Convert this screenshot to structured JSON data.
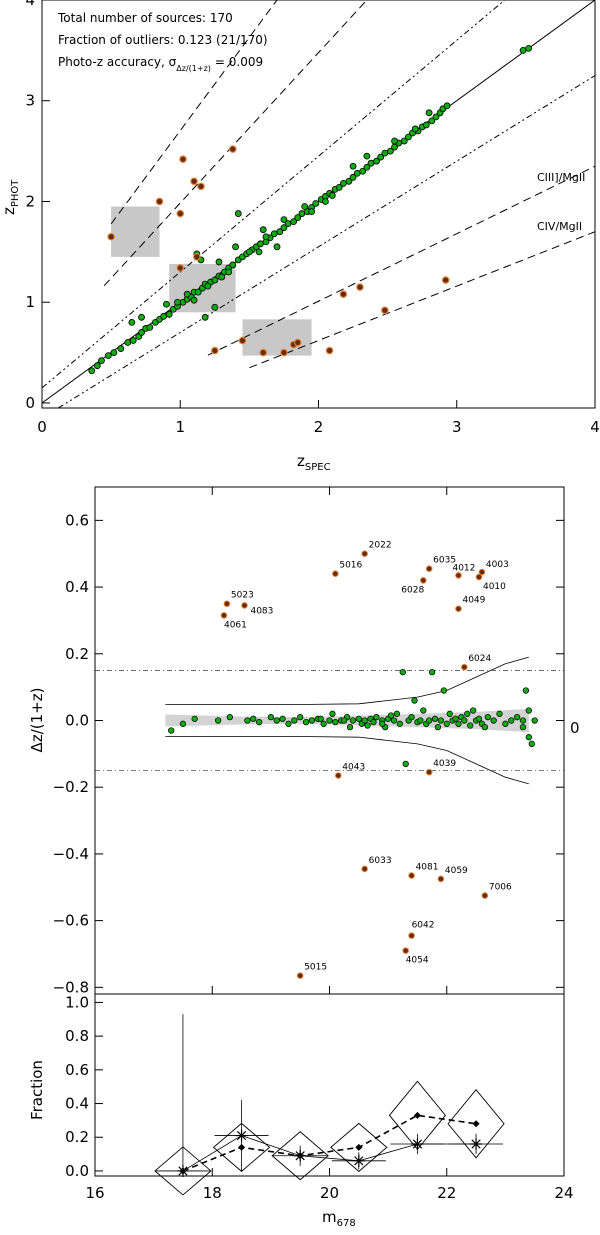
{
  "chart_data": [
    {
      "type": "scatter",
      "panel": "top",
      "xlabel": "z",
      "xlabel_sub": "SPEC",
      "ylabel": "z",
      "ylabel_sub": "PHOT",
      "xlim": [
        0,
        4
      ],
      "ylim": [
        -0.05,
        4
      ],
      "xticks": [
        "0",
        "1",
        "2",
        "3",
        "4"
      ],
      "yticks": [
        "0",
        "1",
        "2",
        "3",
        "4"
      ],
      "annotations": {
        "total": "Total number of sources: 170",
        "outliers": "Fraction of outliers: 0.123 (21/170)",
        "accuracy_prefix": "Photo-z accuracy, σ",
        "accuracy_sub": "Δz/(1+z)",
        "accuracy_value": "= 0.009",
        "ciii_label": "CIII]/MgII",
        "civ_label": "CIV/MgII"
      },
      "lines": {
        "one_to_one": "solid",
        "scatter_limit_dz": 0.15,
        "ciii_mgii_factor": 0.67,
        "civ_mgii_factor": 0.54
      },
      "shaded_boxes": [
        {
          "x0": 0.5,
          "x1": 0.85,
          "y0": 1.45,
          "y1": 1.95
        },
        {
          "x0": 0.92,
          "x1": 1.4,
          "y0": 0.9,
          "y1": 1.38
        },
        {
          "x0": 1.45,
          "x1": 1.95,
          "y0": 0.47,
          "y1": 0.83
        }
      ],
      "inliers": [
        [
          0.36,
          0.32
        ],
        [
          0.4,
          0.37
        ],
        [
          0.43,
          0.42
        ],
        [
          0.48,
          0.47
        ],
        [
          0.52,
          0.5
        ],
        [
          0.57,
          0.54
        ],
        [
          0.62,
          0.6
        ],
        [
          0.66,
          0.62
        ],
        [
          0.7,
          0.66
        ],
        [
          0.72,
          0.7
        ],
        [
          0.75,
          0.74
        ],
        [
          0.78,
          0.75
        ],
        [
          0.82,
          0.8
        ],
        [
          0.85,
          0.83
        ],
        [
          0.88,
          0.86
        ],
        [
          0.92,
          0.88
        ],
        [
          0.95,
          0.93
        ],
        [
          0.98,
          0.96
        ],
        [
          1.02,
          1.0
        ],
        [
          1.05,
          1.03
        ],
        [
          1.08,
          1.05
        ],
        [
          1.1,
          1.1
        ],
        [
          1.13,
          1.1
        ],
        [
          1.16,
          1.14
        ],
        [
          1.18,
          1.18
        ],
        [
          1.22,
          1.2
        ],
        [
          1.25,
          1.22
        ],
        [
          1.28,
          1.26
        ],
        [
          1.32,
          1.3
        ],
        [
          1.35,
          1.34
        ],
        [
          1.38,
          1.37
        ],
        [
          1.42,
          1.42
        ],
        [
          1.45,
          1.45
        ],
        [
          1.48,
          1.48
        ],
        [
          1.52,
          1.52
        ],
        [
          1.55,
          1.55
        ],
        [
          1.58,
          1.58
        ],
        [
          1.62,
          1.6
        ],
        [
          1.65,
          1.64
        ],
        [
          1.68,
          1.68
        ],
        [
          1.72,
          1.7
        ],
        [
          1.75,
          1.74
        ],
        [
          1.78,
          1.78
        ],
        [
          1.82,
          1.8
        ],
        [
          1.85,
          1.84
        ],
        [
          1.88,
          1.88
        ],
        [
          1.92,
          1.9
        ],
        [
          1.95,
          1.94
        ],
        [
          1.98,
          1.98
        ],
        [
          2.02,
          2.02
        ],
        [
          2.05,
          2.05
        ],
        [
          2.08,
          2.08
        ],
        [
          2.12,
          2.12
        ],
        [
          2.15,
          2.14
        ],
        [
          2.18,
          2.18
        ],
        [
          2.22,
          2.2
        ],
        [
          2.25,
          2.24
        ],
        [
          2.28,
          2.28
        ],
        [
          2.32,
          2.3
        ],
        [
          2.35,
          2.34
        ],
        [
          2.38,
          2.38
        ],
        [
          2.42,
          2.4
        ],
        [
          2.45,
          2.44
        ],
        [
          2.48,
          2.48
        ],
        [
          2.52,
          2.5
        ],
        [
          2.55,
          2.54
        ],
        [
          2.58,
          2.58
        ],
        [
          2.62,
          2.6
        ],
        [
          2.65,
          2.64
        ],
        [
          2.68,
          2.68
        ],
        [
          2.72,
          2.7
        ],
        [
          2.75,
          2.74
        ],
        [
          2.78,
          2.76
        ],
        [
          2.82,
          2.8
        ],
        [
          2.85,
          2.84
        ],
        [
          2.88,
          2.88
        ],
        [
          2.9,
          2.92
        ],
        [
          2.93,
          2.95
        ],
        [
          3.48,
          3.5
        ],
        [
          3.52,
          3.52
        ],
        [
          0.65,
          0.8
        ],
        [
          0.72,
          0.85
        ],
        [
          0.9,
          0.98
        ],
        [
          1.12,
          1.48
        ],
        [
          1.15,
          1.42
        ],
        [
          1.42,
          1.88
        ],
        [
          1.28,
          1.4
        ],
        [
          1.35,
          1.3
        ],
        [
          1.25,
          0.95
        ],
        [
          1.18,
          0.85
        ],
        [
          1.4,
          1.55
        ],
        [
          1.6,
          1.72
        ],
        [
          1.7,
          1.55
        ],
        [
          1.75,
          1.82
        ],
        [
          1.9,
          1.95
        ],
        [
          2.05,
          2.0
        ],
        [
          2.25,
          2.35
        ],
        [
          2.35,
          2.45
        ],
        [
          2.55,
          2.6
        ],
        [
          2.7,
          2.72
        ],
        [
          2.8,
          2.88
        ],
        [
          1.05,
          1.08
        ],
        [
          0.98,
          1.0
        ],
        [
          1.2,
          1.16
        ],
        [
          1.3,
          1.25
        ],
        [
          1.1,
          1.02
        ],
        [
          1.5,
          1.5
        ],
        [
          1.57,
          1.5
        ],
        [
          1.62,
          1.65
        ],
        [
          1.95,
          1.9
        ],
        [
          2.1,
          2.06
        ]
      ],
      "outlier_points": [
        [
          0.5,
          1.65
        ],
        [
          0.85,
          2.0
        ],
        [
          1.0,
          1.88
        ],
        [
          1.02,
          2.42
        ],
        [
          1.1,
          2.2
        ],
        [
          1.15,
          2.15
        ],
        [
          1.38,
          2.52
        ],
        [
          1.0,
          1.34
        ],
        [
          1.12,
          1.45
        ],
        [
          1.25,
          0.52
        ],
        [
          1.45,
          0.62
        ],
        [
          1.6,
          0.5
        ],
        [
          1.75,
          0.5
        ],
        [
          1.82,
          0.58
        ],
        [
          1.85,
          0.6
        ],
        [
          2.08,
          0.52
        ],
        [
          2.18,
          1.08
        ],
        [
          2.3,
          1.15
        ],
        [
          2.48,
          0.92
        ],
        [
          2.92,
          1.22
        ]
      ]
    },
    {
      "type": "scatter",
      "panel": "middle",
      "ylabel": "Δz/(1+z)",
      "xlim": [
        16,
        24
      ],
      "ylim": [
        -0.82,
        0.7
      ],
      "yticks": [
        "−0.8",
        "−0.6",
        "−0.4",
        "−0.2",
        "0.0",
        "0.2",
        "0.4",
        "0.6"
      ],
      "right_label": "0",
      "threshold": 0.15,
      "labeled_outliers": [
        {
          "id": "2022",
          "x": 20.6,
          "y": 0.5
        },
        {
          "id": "5016",
          "x": 20.1,
          "y": 0.44
        },
        {
          "id": "6035",
          "x": 21.7,
          "y": 0.455
        },
        {
          "id": "6028",
          "x": 21.6,
          "y": 0.42
        },
        {
          "id": "4012",
          "x": 22.2,
          "y": 0.435
        },
        {
          "id": "4003",
          "x": 22.6,
          "y": 0.445
        },
        {
          "id": "4010",
          "x": 22.55,
          "y": 0.43
        },
        {
          "id": "5023",
          "x": 18.25,
          "y": 0.35
        },
        {
          "id": "4083",
          "x": 18.55,
          "y": 0.345
        },
        {
          "id": "4061",
          "x": 18.2,
          "y": 0.315
        },
        {
          "id": "4049",
          "x": 22.2,
          "y": 0.335
        },
        {
          "id": "6024",
          "x": 22.3,
          "y": 0.16
        },
        {
          "id": "4043",
          "x": 20.15,
          "y": -0.165
        },
        {
          "id": "4039",
          "x": 21.7,
          "y": -0.155
        },
        {
          "id": "6033",
          "x": 20.6,
          "y": -0.445
        },
        {
          "id": "4081",
          "x": 21.4,
          "y": -0.465
        },
        {
          "id": "4059",
          "x": 21.9,
          "y": -0.475
        },
        {
          "id": "7006",
          "x": 22.65,
          "y": -0.525
        },
        {
          "id": "6042",
          "x": 21.4,
          "y": -0.645
        },
        {
          "id": "4054",
          "x": 21.3,
          "y": -0.69
        },
        {
          "id": "5015",
          "x": 19.5,
          "y": -0.765
        }
      ],
      "inliers": [
        [
          17.3,
          -0.03
        ],
        [
          17.5,
          -0.01
        ],
        [
          17.7,
          0.005
        ],
        [
          18.1,
          0.0
        ],
        [
          18.3,
          0.01
        ],
        [
          18.6,
          0.0
        ],
        [
          18.7,
          0.005
        ],
        [
          18.8,
          -0.005
        ],
        [
          19.0,
          0.01
        ],
        [
          19.1,
          0.0
        ],
        [
          19.2,
          0.005
        ],
        [
          19.3,
          -0.01
        ],
        [
          19.4,
          0.0
        ],
        [
          19.5,
          0.01
        ],
        [
          19.6,
          -0.005
        ],
        [
          19.7,
          0.0
        ],
        [
          19.8,
          0.005
        ],
        [
          19.9,
          -0.01
        ],
        [
          20.0,
          0.0
        ],
        [
          20.05,
          0.02
        ],
        [
          20.1,
          -0.005
        ],
        [
          20.2,
          0.0
        ],
        [
          20.3,
          0.01
        ],
        [
          20.35,
          -0.02
        ],
        [
          20.4,
          0.0
        ],
        [
          20.5,
          0.005
        ],
        [
          20.55,
          -0.01
        ],
        [
          20.6,
          0.0
        ],
        [
          20.7,
          0.005
        ],
        [
          20.75,
          -0.005
        ],
        [
          20.8,
          0.01
        ],
        [
          20.9,
          0.0
        ],
        [
          20.95,
          -0.02
        ],
        [
          21.0,
          0.005
        ],
        [
          21.1,
          0.0
        ],
        [
          21.15,
          0.02
        ],
        [
          21.2,
          -0.01
        ],
        [
          21.25,
          0.145
        ],
        [
          21.3,
          -0.13
        ],
        [
          21.35,
          0.0
        ],
        [
          21.4,
          0.01
        ],
        [
          21.45,
          0.06
        ],
        [
          21.5,
          -0.005
        ],
        [
          21.55,
          0.0
        ],
        [
          21.6,
          0.03
        ],
        [
          21.65,
          -0.01
        ],
        [
          21.7,
          0.0
        ],
        [
          21.75,
          0.145
        ],
        [
          21.8,
          0.005
        ],
        [
          21.85,
          -0.02
        ],
        [
          21.9,
          0.0
        ],
        [
          21.95,
          0.09
        ],
        [
          22.0,
          -0.01
        ],
        [
          22.05,
          0.02
        ],
        [
          22.1,
          0.0
        ],
        [
          22.15,
          0.005
        ],
        [
          22.2,
          -0.01
        ],
        [
          22.25,
          0.01
        ],
        [
          22.3,
          0.0
        ],
        [
          22.35,
          0.02
        ],
        [
          22.4,
          -0.015
        ],
        [
          22.5,
          0.0
        ],
        [
          22.55,
          0.005
        ],
        [
          22.6,
          -0.01
        ],
        [
          22.7,
          0.01
        ],
        [
          22.8,
          0.0
        ],
        [
          22.9,
          0.02
        ],
        [
          23.0,
          -0.01
        ],
        [
          23.1,
          0.0
        ],
        [
          23.2,
          0.01
        ],
        [
          23.3,
          -0.02
        ],
        [
          23.35,
          0.09
        ],
        [
          23.4,
          -0.05
        ],
        [
          23.45,
          -0.07
        ],
        [
          23.4,
          0.03
        ],
        [
          23.5,
          0.0
        ],
        [
          23.3,
          0.0
        ],
        [
          20.9,
          -0.01
        ],
        [
          20.25,
          0.0
        ],
        [
          19.85,
          0.005
        ],
        [
          22.45,
          0.03
        ],
        [
          22.65,
          -0.02
        ],
        [
          21.05,
          0.015
        ],
        [
          20.65,
          -0.015
        ]
      ]
    },
    {
      "type": "line",
      "panel": "bottom",
      "ylabel": "Fraction",
      "xlabel": "m",
      "xlabel_sub": "678",
      "xlim": [
        16,
        24
      ],
      "ylim": [
        -0.03,
        1.05
      ],
      "xticks": [
        "16",
        "18",
        "20",
        "22",
        "24"
      ],
      "yticks": [
        "0.0",
        "0.2",
        "0.4",
        "0.6",
        "0.8",
        "1.0"
      ],
      "x": [
        17.5,
        18.5,
        19.5,
        20.5,
        21.5,
        22.5
      ],
      "series": [
        {
          "name": "diamond",
          "values": [
            0.0,
            0.14,
            0.09,
            0.14,
            0.33,
            0.28
          ]
        },
        {
          "name": "asterisk",
          "values": [
            0.0,
            0.21,
            0.09,
            0.06,
            0.16,
            0.16
          ]
        }
      ],
      "asterisk_err": [
        0.93,
        0.21,
        0.06,
        0.05,
        0.06,
        0.06
      ]
    }
  ]
}
